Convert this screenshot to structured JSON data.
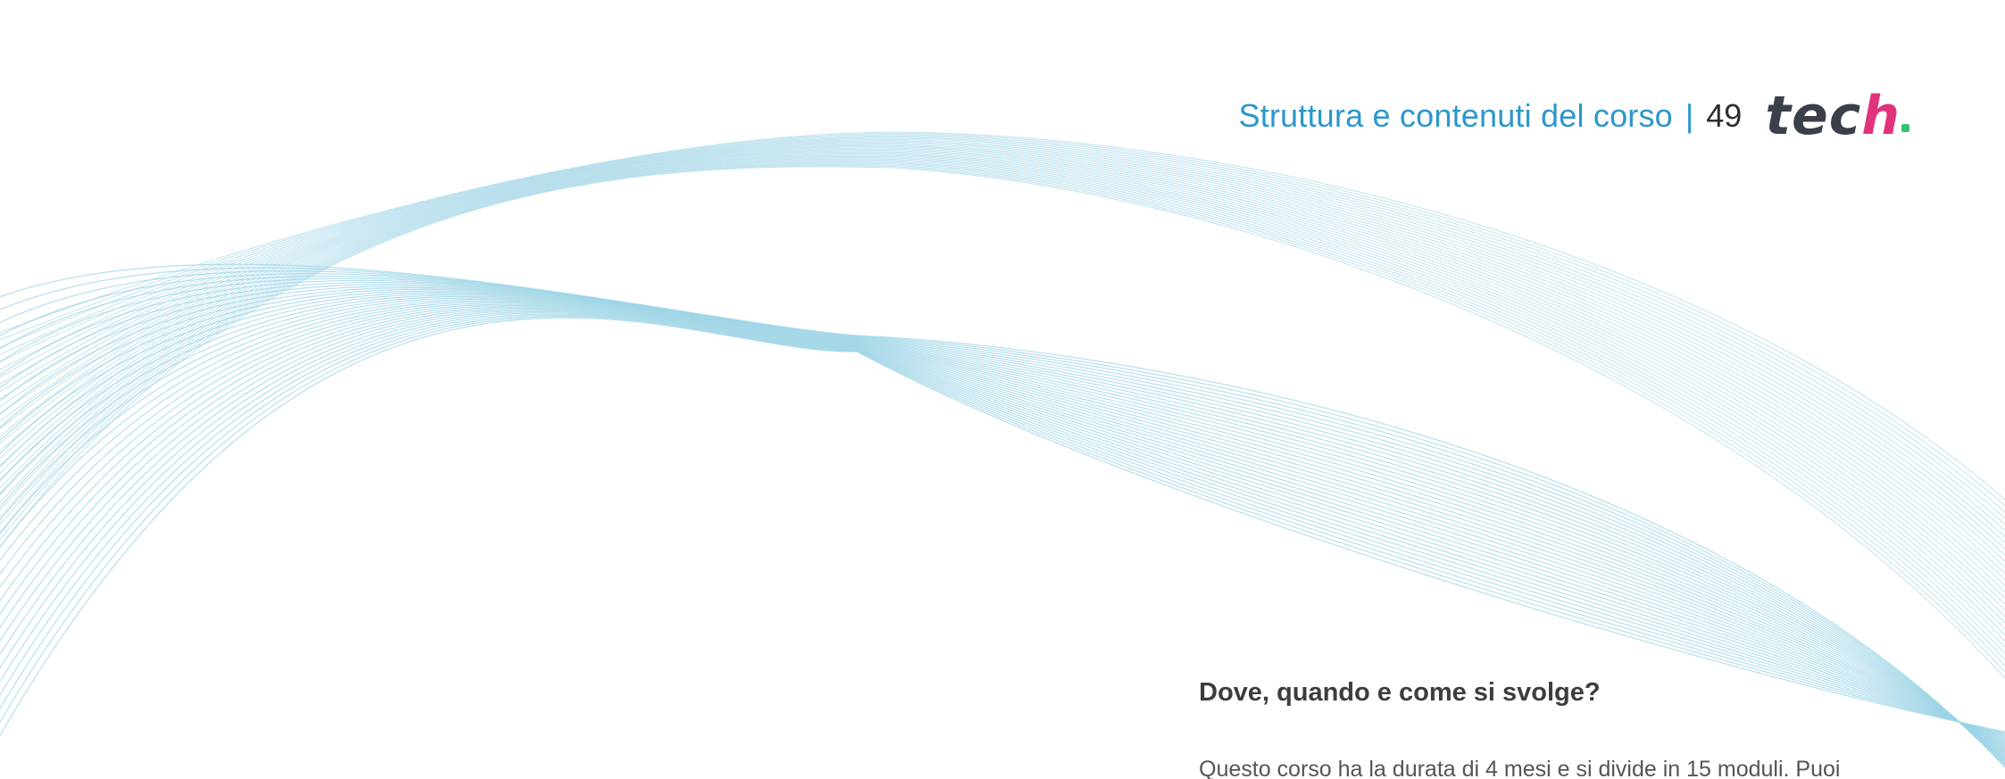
{
  "header": {
    "section_title": "Struttura e contenuti del corso",
    "separator": "|",
    "page_number": "49",
    "logo_text_main": "tec",
    "logo_text_last": "h"
  },
  "content": {
    "question": "Dove, quando e come si svolge?",
    "paragraph": "Questo corso ha la durata di 4 mesi e si divide in 15 moduli. Puoi"
  },
  "colors": {
    "title_blue": "#2b97cc",
    "wave_blue": "#9ed4e6",
    "logo_dark": "#3a3f4a",
    "text_dark": "#3d3d3d"
  }
}
